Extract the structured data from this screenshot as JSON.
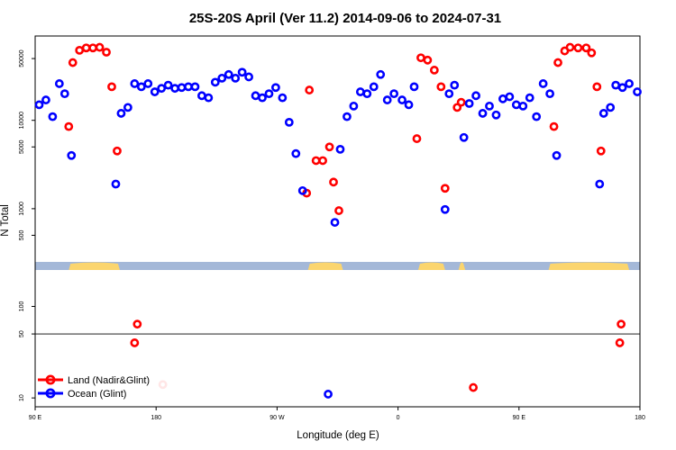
{
  "chart_data": {
    "type": "scatter",
    "title": "25S-20S April (Ver 11.2)   2014-09-06 to 2024-07-31",
    "xlabel": "Longitude (deg E)",
    "ylabel": "N Total",
    "x_ticks": [
      {
        "lon": -270,
        "label": "90 E"
      },
      {
        "lon": -180,
        "label": "180"
      },
      {
        "lon": -90,
        "label": "90 W"
      },
      {
        "lon": 0,
        "label": "0"
      },
      {
        "lon": 90,
        "label": "90 E"
      },
      {
        "lon": 180,
        "label": "180"
      }
    ],
    "xlim": [
      -270,
      180
    ],
    "upper_yscale": "log",
    "upper_ylim": [
      250,
      90000
    ],
    "upper_ticks": [
      500,
      1000,
      5000,
      10000,
      50000
    ],
    "lower_yscale": "log",
    "lower_ylim": [
      8,
      250
    ],
    "lower_ticks": [
      10,
      50,
      100
    ],
    "reference_line": 50,
    "legend_position": "bottom-left",
    "land_strip_segments": [
      [
        -245,
        -207
      ],
      [
        -67,
        -41
      ],
      [
        15,
        35
      ],
      [
        45,
        50
      ],
      [
        112,
        172
      ]
    ],
    "colors": {
      "land": "#ff0000",
      "ocean": "#0000ff",
      "strip_ocean": "#a4b8d8",
      "strip_land": "#fbd56e"
    },
    "series": [
      {
        "name": "Land (Nadir&Glint)",
        "color": "#ff0000",
        "points": [
          [
            -245,
            8500
          ],
          [
            -242,
            45000
          ],
          [
            -237,
            62000
          ],
          [
            -232,
            66000
          ],
          [
            -227,
            66000
          ],
          [
            -222,
            67000
          ],
          [
            -217,
            59000
          ],
          [
            -213,
            24000
          ],
          [
            -209,
            4500
          ],
          [
            -194,
            64
          ],
          [
            -196,
            40
          ],
          [
            -175,
            14
          ],
          [
            -68,
            1500
          ],
          [
            -66,
            22000
          ],
          [
            -61,
            3500
          ],
          [
            -56,
            3500
          ],
          [
            -51,
            5000
          ],
          [
            -48,
            2000
          ],
          [
            -44,
            950
          ],
          [
            14,
            6200
          ],
          [
            17,
            51000
          ],
          [
            22,
            48000
          ],
          [
            27,
            37000
          ],
          [
            32,
            24000
          ],
          [
            35,
            1700
          ],
          [
            44,
            14000
          ],
          [
            47,
            16000
          ],
          [
            56,
            13
          ],
          [
            116,
            8500
          ],
          [
            119,
            45000
          ],
          [
            124,
            61000
          ],
          [
            128,
            67000
          ],
          [
            134,
            66000
          ],
          [
            140,
            66000
          ],
          [
            144,
            58000
          ],
          [
            148,
            24000
          ],
          [
            151,
            4500
          ],
          [
            166,
            64
          ],
          [
            165,
            40
          ]
        ]
      },
      {
        "name": "Ocean (Glint)",
        "color": "#0000ff",
        "points": [
          [
            -267,
            15000
          ],
          [
            -262,
            17000
          ],
          [
            -257,
            11000
          ],
          [
            -252,
            26000
          ],
          [
            -248,
            20000
          ],
          [
            -243,
            4000
          ],
          [
            -210,
            1900
          ],
          [
            -206,
            12000
          ],
          [
            -201,
            14000
          ],
          [
            -196,
            26000
          ],
          [
            -191,
            24000
          ],
          [
            -186,
            26000
          ],
          [
            -181,
            21000
          ],
          [
            -176,
            23000
          ],
          [
            -171,
            25000
          ],
          [
            -166,
            23000
          ],
          [
            -161,
            23500
          ],
          [
            -156,
            24000
          ],
          [
            -151,
            24000
          ],
          [
            -146,
            19000
          ],
          [
            -141,
            18000
          ],
          [
            -136,
            27000
          ],
          [
            -131,
            30000
          ],
          [
            -126,
            33000
          ],
          [
            -121,
            30000
          ],
          [
            -116,
            35000
          ],
          [
            -111,
            31000
          ],
          [
            -106,
            19000
          ],
          [
            -101,
            18000
          ],
          [
            -96,
            20000
          ],
          [
            -91,
            23500
          ],
          [
            -86,
            18000
          ],
          [
            -81,
            9500
          ],
          [
            -76,
            4200
          ],
          [
            -71,
            1600
          ],
          [
            -52,
            11
          ],
          [
            -47,
            700
          ],
          [
            -43,
            4700
          ],
          [
            -38,
            11000
          ],
          [
            -33,
            14500
          ],
          [
            -28,
            21000
          ],
          [
            -23,
            20000
          ],
          [
            -18,
            24000
          ],
          [
            -13,
            33000
          ],
          [
            -8,
            17000
          ],
          [
            -3,
            20000
          ],
          [
            3,
            17000
          ],
          [
            8,
            15000
          ],
          [
            12,
            24000
          ],
          [
            35,
            980
          ],
          [
            38,
            20000
          ],
          [
            42,
            25000
          ],
          [
            49,
            6400
          ],
          [
            53,
            15500
          ],
          [
            58,
            19000
          ],
          [
            63,
            12000
          ],
          [
            68,
            14500
          ],
          [
            73,
            11500
          ],
          [
            78,
            17500
          ],
          [
            83,
            18500
          ],
          [
            88,
            15000
          ],
          [
            93,
            14500
          ],
          [
            98,
            18000
          ],
          [
            103,
            11000
          ],
          [
            108,
            26000
          ],
          [
            113,
            20000
          ],
          [
            118,
            4000
          ],
          [
            150,
            1900
          ],
          [
            153,
            12000
          ],
          [
            158,
            14000
          ],
          [
            162,
            25000
          ],
          [
            167,
            23500
          ],
          [
            172,
            26000
          ],
          [
            178,
            21000
          ]
        ]
      }
    ]
  }
}
